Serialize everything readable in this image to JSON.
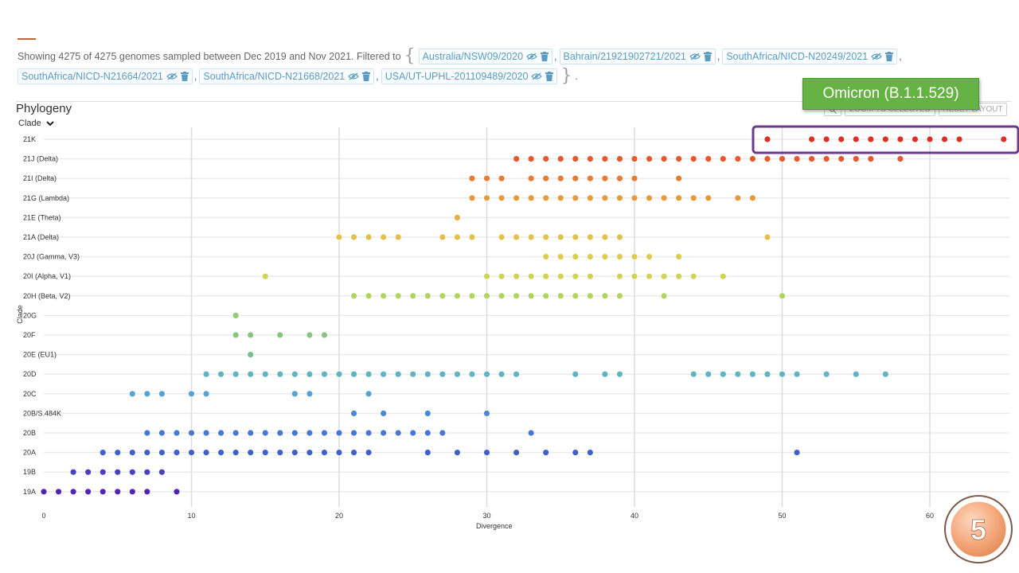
{
  "filter": {
    "summary": "Showing 4275 of 4275 genomes sampled between Dec 2019 and Nov 2021. Filtered to",
    "open_brace": "{",
    "close_brace": "}",
    "end": ".",
    "chips": [
      "Australia/NSW09/2020",
      "Bahrain/21921902721/2021",
      "SouthAfrica/NICD-N20249/2021",
      "SouthAfrica/NICD-N21664/2021",
      "SouthAfrica/NICD-N21668/2021",
      "USA/UT-UPHL-201109489/2020"
    ],
    "separator": ","
  },
  "panel": {
    "title": "Phylogeny",
    "color_by": "Clade",
    "zoom_selected": "ZOOM TO SELECTED",
    "reset_layout": "RESET LAYOUT"
  },
  "annotation": {
    "label": "Omicron (B.1.1.529)",
    "label_color": "#66b244",
    "box_color": "#6b3a8e",
    "highlighted_clade": "21K"
  },
  "slide": {
    "number": "5",
    "color": "#f4a77a"
  },
  "chart_data": {
    "type": "scatter",
    "xlabel": "Divergence",
    "ylabel": "Clade",
    "xlim": [
      0,
      66
    ],
    "xticks": [
      0,
      10,
      20,
      30,
      40,
      50,
      60
    ],
    "grid": true,
    "categories": [
      "21K",
      "21J (Delta)",
      "21I (Delta)",
      "21G (Lambda)",
      "21E (Theta)",
      "21A (Delta)",
      "20J (Gamma, V3)",
      "20I (Alpha, V1)",
      "20H (Beta, V2)",
      "20G",
      "20F",
      "20E (EU1)",
      "20D",
      "20C",
      "20B/S.484K",
      "20B",
      "20A",
      "19B",
      "19A"
    ],
    "series": [
      {
        "clade": "21K",
        "color": "#dc2f24",
        "x": [
          49,
          52,
          53,
          54,
          55,
          56,
          57,
          58,
          59,
          60,
          61,
          62,
          65
        ]
      },
      {
        "clade": "21J (Delta)",
        "color": "#e4582c",
        "x": [
          32,
          33,
          34,
          35,
          36,
          37,
          38,
          39,
          40,
          41,
          42,
          43,
          44,
          45,
          46,
          47,
          48,
          49,
          50,
          51,
          52,
          53,
          54,
          55,
          56,
          58
        ]
      },
      {
        "clade": "21I (Delta)",
        "color": "#e67b33",
        "x": [
          29,
          30,
          31,
          33,
          34,
          35,
          36,
          37,
          38,
          39,
          40,
          43
        ]
      },
      {
        "clade": "21G (Lambda)",
        "color": "#e69a3b",
        "x": [
          29,
          30,
          31,
          32,
          33,
          34,
          35,
          36,
          37,
          38,
          39,
          40,
          41,
          42,
          43,
          44,
          45,
          47,
          48
        ]
      },
      {
        "clade": "21E (Theta)",
        "color": "#e3ae42",
        "x": [
          28
        ]
      },
      {
        "clade": "21A (Delta)",
        "color": "#e0c14b",
        "x": [
          20,
          21,
          22,
          23,
          24,
          27,
          28,
          29,
          31,
          32,
          33,
          34,
          35,
          36,
          37,
          38,
          39,
          49
        ]
      },
      {
        "clade": "20J (Gamma, V3)",
        "color": "#dccd50",
        "x": [
          34,
          35,
          36,
          37,
          38,
          39,
          40,
          41,
          43
        ]
      },
      {
        "clade": "20I (Alpha, V1)",
        "color": "#cfd455",
        "x": [
          15,
          30,
          31,
          32,
          33,
          34,
          35,
          36,
          37,
          39,
          40,
          41,
          42,
          43,
          44,
          46
        ]
      },
      {
        "clade": "20H (Beta, V2)",
        "color": "#b4d25d",
        "x": [
          21,
          22,
          23,
          24,
          25,
          26,
          27,
          28,
          29,
          30,
          31,
          32,
          33,
          34,
          35,
          36,
          37,
          38,
          39,
          42,
          50
        ]
      },
      {
        "clade": "20G",
        "color": "#96ca6e",
        "x": [
          13
        ]
      },
      {
        "clade": "20F",
        "color": "#86c57c",
        "x": [
          13,
          14,
          16,
          18,
          19
        ]
      },
      {
        "clade": "20E (EU1)",
        "color": "#77bf91",
        "x": [
          14
        ]
      },
      {
        "clade": "20D",
        "color": "#5fb3c3",
        "x": [
          11,
          12,
          13,
          14,
          15,
          16,
          17,
          18,
          19,
          20,
          21,
          22,
          23,
          24,
          25,
          26,
          27,
          28,
          29,
          30,
          31,
          32,
          36,
          38,
          39,
          44,
          45,
          46,
          47,
          48,
          49,
          50,
          51,
          53,
          55,
          57
        ]
      },
      {
        "clade": "20C",
        "color": "#55a2d3",
        "x": [
          6,
          7,
          8,
          10,
          11,
          17,
          18,
          22
        ]
      },
      {
        "clade": "20B/S.484K",
        "color": "#4b8ad3",
        "x": [
          21,
          23,
          26,
          30
        ]
      },
      {
        "clade": "20B",
        "color": "#4677d4",
        "x": [
          7,
          8,
          9,
          10,
          11,
          12,
          13,
          14,
          15,
          16,
          17,
          18,
          19,
          20,
          21,
          22,
          23,
          24,
          25,
          26,
          27,
          33
        ]
      },
      {
        "clade": "20A",
        "color": "#3f5fcd",
        "x": [
          4,
          5,
          6,
          7,
          8,
          9,
          10,
          11,
          12,
          13,
          14,
          15,
          16,
          17,
          18,
          19,
          20,
          21,
          22,
          26,
          28,
          30,
          32,
          34,
          36,
          37,
          51
        ]
      },
      {
        "clade": "19B",
        "color": "#4a3fc1",
        "x": [
          2,
          3,
          4,
          5,
          6,
          7,
          8
        ]
      },
      {
        "clade": "19A",
        "color": "#5125b0",
        "x": [
          0,
          1,
          2,
          3,
          4,
          5,
          6,
          7,
          9
        ]
      }
    ]
  }
}
